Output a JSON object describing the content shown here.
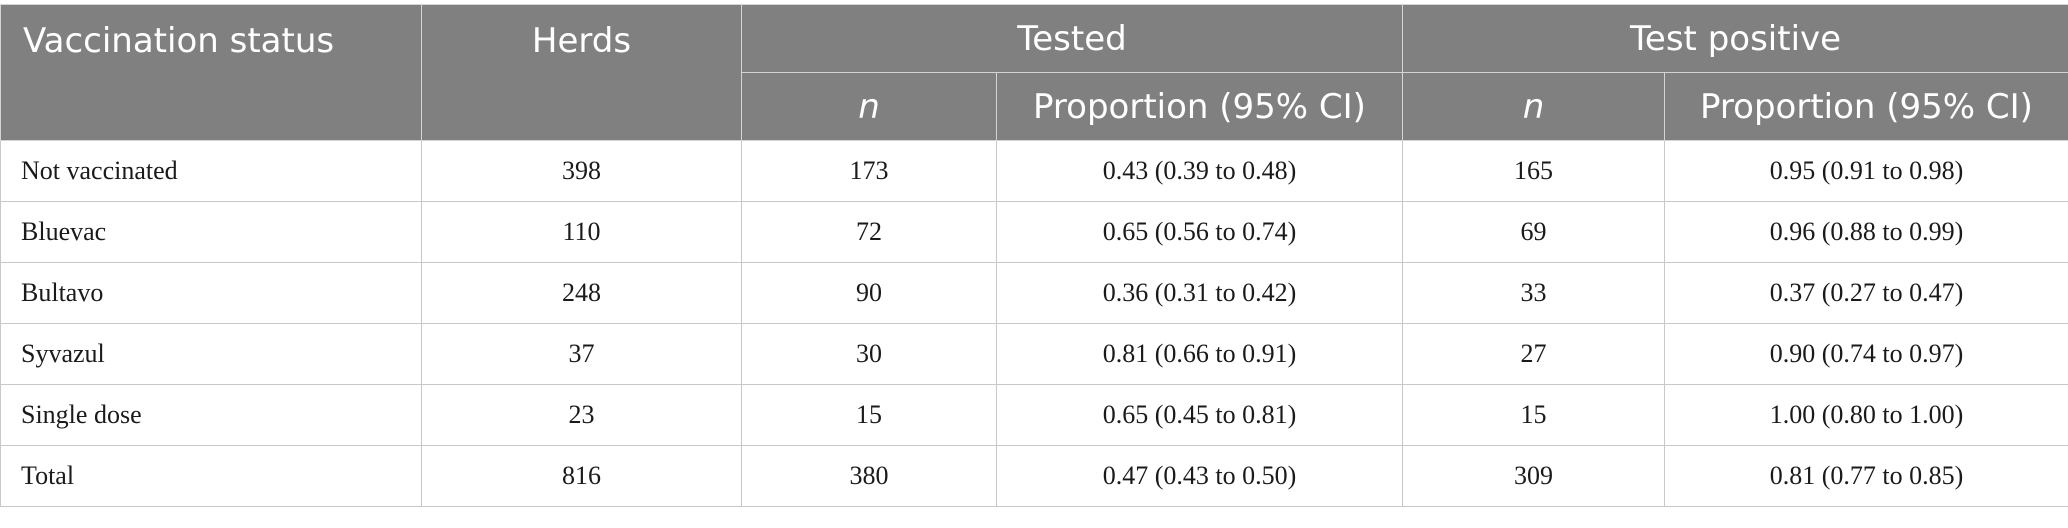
{
  "header": {
    "col_vaccination_status": "Vaccination status",
    "col_herds": "Herds",
    "group_tested": "Tested",
    "group_test_positive": "Test positive",
    "sub_n": "n",
    "sub_proportion": "Proportion (95% CI)"
  },
  "rows": [
    {
      "status": "Not vaccinated",
      "herds": "398",
      "tested_n": "173",
      "tested_prop": "0.43 (0.39 to 0.48)",
      "pos_n": "165",
      "pos_prop": "0.95 (0.91 to 0.98)"
    },
    {
      "status": "Bluevac",
      "herds": "110",
      "tested_n": "72",
      "tested_prop": "0.65 (0.56 to 0.74)",
      "pos_n": "69",
      "pos_prop": "0.96 (0.88 to 0.99)"
    },
    {
      "status": "Bultavo",
      "herds": "248",
      "tested_n": "90",
      "tested_prop": "0.36 (0.31 to 0.42)",
      "pos_n": "33",
      "pos_prop": "0.37 (0.27 to 0.47)"
    },
    {
      "status": "Syvazul",
      "herds": "37",
      "tested_n": "30",
      "tested_prop": "0.81 (0.66 to 0.91)",
      "pos_n": "27",
      "pos_prop": "0.90 (0.74 to 0.97)"
    },
    {
      "status": "Single dose",
      "herds": "23",
      "tested_n": "15",
      "tested_prop": "0.65 (0.45 to 0.81)",
      "pos_n": "15",
      "pos_prop": "1.00 (0.80 to 1.00)"
    },
    {
      "status": "Total",
      "herds": "816",
      "tested_n": "380",
      "tested_prop": "0.47 (0.43 to 0.50)",
      "pos_n": "309",
      "pos_prop": "0.81 (0.77 to 0.85)"
    }
  ],
  "colors": {
    "header_bg": "#808080",
    "header_text": "#ffffff",
    "body_text": "#1a1a1a",
    "grid": "#c8c8c8"
  }
}
